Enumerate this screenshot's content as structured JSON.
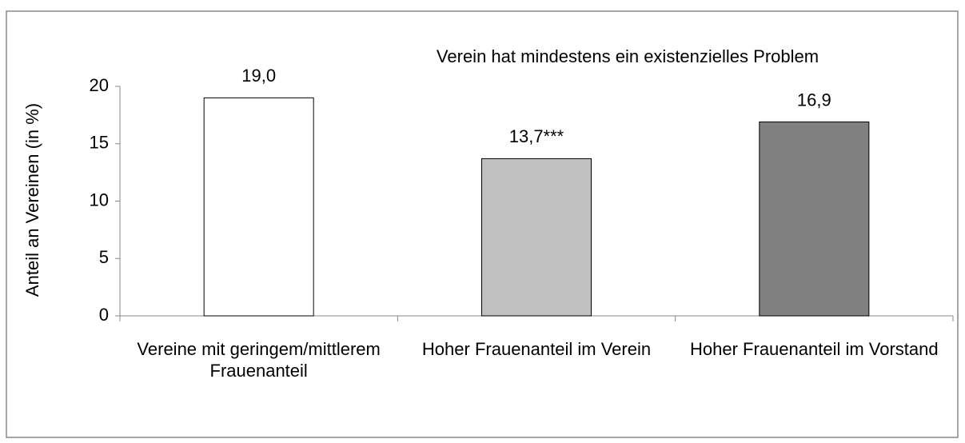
{
  "chart_data": {
    "type": "bar",
    "title": "Verein hat mindestens ein existenzielles Problem",
    "ylabel": "Anteil an Vereinen (in %)",
    "categories": [
      "Vereine mit geringem/mittlerem Frauenanteil",
      "Hoher Frauenanteil im Verein",
      "Hoher Frauenanteil im Vorstand"
    ],
    "values": [
      19.0,
      13.7,
      16.9
    ],
    "value_labels": [
      "19,0",
      "13,7***",
      "16,9"
    ],
    "colors": [
      "#ffffff",
      "#c0c0c0",
      "#808080"
    ],
    "ylim": [
      0,
      20
    ],
    "yticks": [
      0,
      5,
      10,
      15,
      20
    ],
    "grid": false
  }
}
